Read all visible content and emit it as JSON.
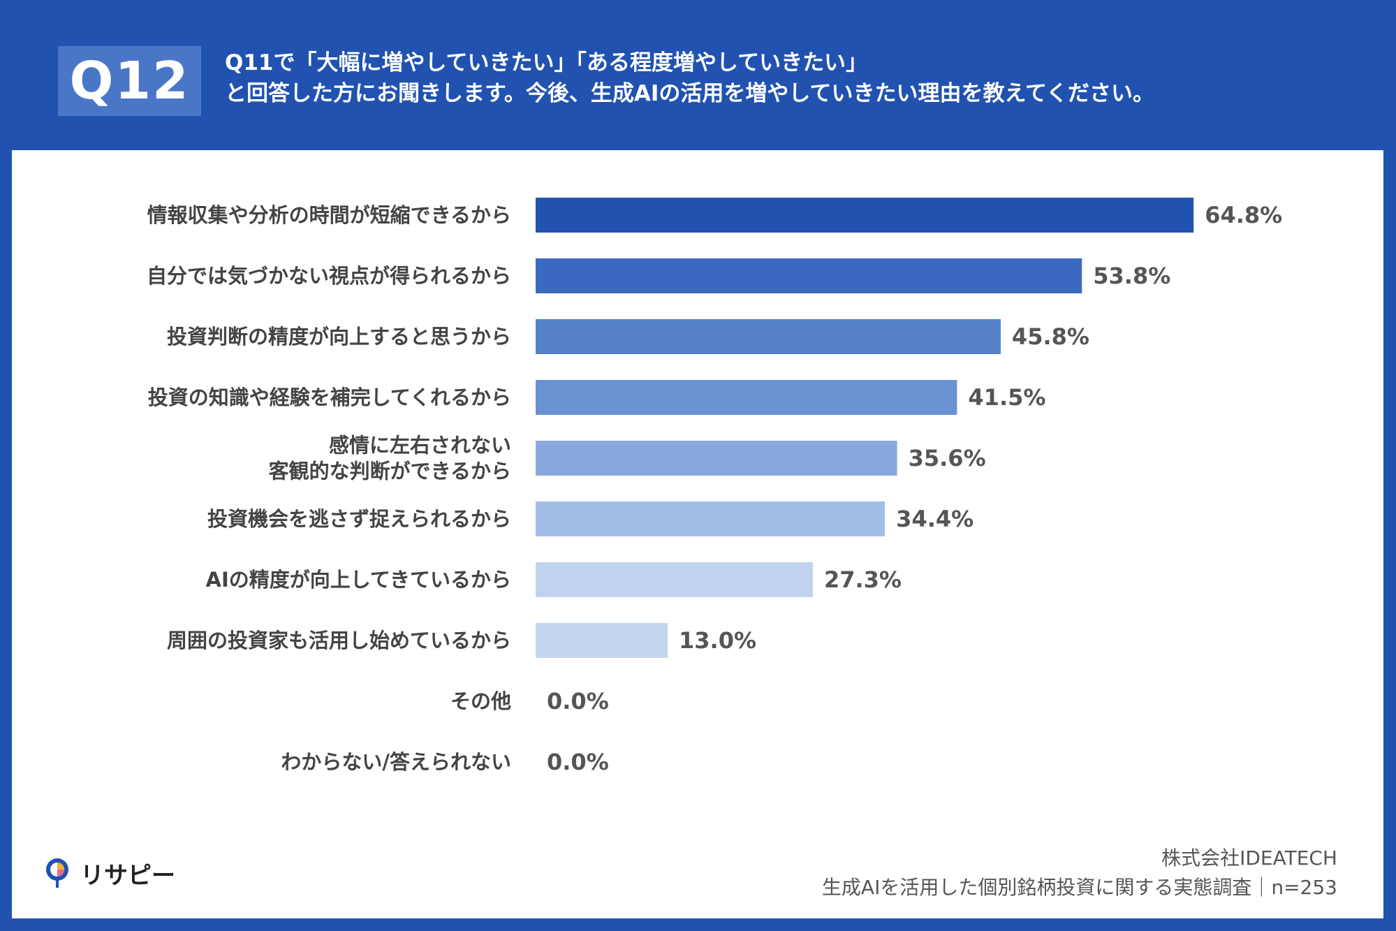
{
  "header": {
    "badge": "Q12",
    "question_line1": "Q11で「大幅に増やしていきたい」「ある程度増やしていきたい」",
    "question_line2": "と回答した方にお聞きします。今後、生成AIの活用を増やしていきたい理由を教えてください。"
  },
  "chart_data": {
    "type": "bar",
    "orientation": "horizontal",
    "title": "",
    "xlabel": "",
    "ylabel": "",
    "xlim": [
      0,
      100
    ],
    "unit": "%",
    "categories": [
      [
        "情報収集や分析の時間が短縮できるから"
      ],
      [
        "自分では気づかない視点が得られるから"
      ],
      [
        "投資判断の精度が向上すると思うから"
      ],
      [
        "投資の知識や経験を補完してくれるから"
      ],
      [
        "感情に左右されない",
        "客観的な判断ができるから"
      ],
      [
        "投資機会を逃さず捉えられるから"
      ],
      [
        "AIの精度が向上してきているから"
      ],
      [
        "周囲の投資家も活用し始めているから"
      ],
      [
        "その他"
      ],
      [
        "わからない/答えられない"
      ]
    ],
    "values": [
      64.8,
      53.8,
      45.8,
      41.5,
      35.6,
      34.4,
      27.3,
      13.0,
      0.0,
      0.0
    ],
    "value_labels": [
      "64.8%",
      "53.8%",
      "45.8%",
      "41.5%",
      "35.6%",
      "34.4%",
      "27.3%",
      "13.0%",
      "0.0%",
      "0.0%"
    ],
    "bar_colors": [
      "#2152b0",
      "#3c69c0",
      "#5581c9",
      "#6a92d2",
      "#89a9de",
      "#a2bde6",
      "#c0d3ee",
      "#c4d6ef",
      "#c4d6ef",
      "#c4d6ef"
    ]
  },
  "footer": {
    "logo_text": "リサピー",
    "source_company": "株式会社IDEATECH",
    "source_survey": "生成AIを活用した個別銘柄投資に関する実態調査｜n=253"
  },
  "colors": {
    "background": "#2152b0",
    "badge": "#4a76c8",
    "label_text": "#444444"
  }
}
